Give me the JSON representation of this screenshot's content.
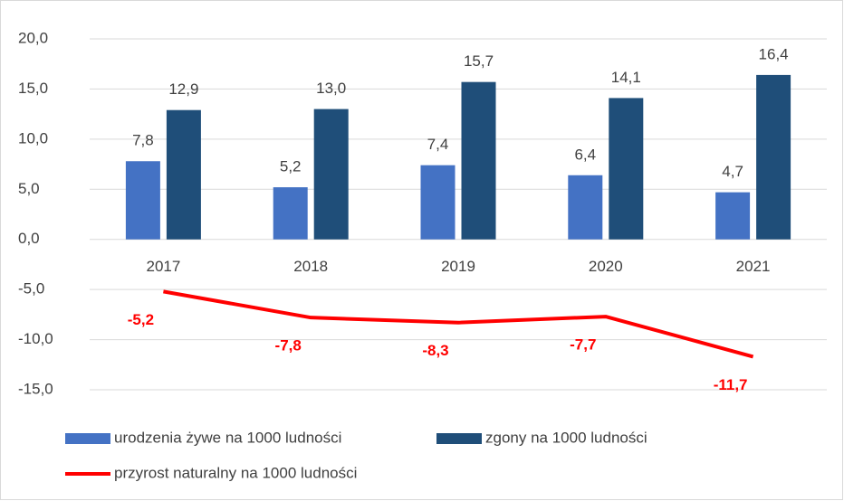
{
  "chart_data": {
    "type": "bar",
    "categories": [
      "2017",
      "2018",
      "2019",
      "2020",
      "2021"
    ],
    "series": [
      {
        "name": "urodzenia żywe na 1000 ludności",
        "color": "#4472c4",
        "values": [
          7.8,
          5.2,
          7.4,
          6.4,
          4.7
        ],
        "value_labels": [
          "7,8",
          "5,2",
          "7,4",
          "6,4",
          "4,7"
        ]
      },
      {
        "name": "zgony na 1000 ludności",
        "color": "#1f4e79",
        "values": [
          12.9,
          13.0,
          15.7,
          14.1,
          16.4
        ],
        "value_labels": [
          "12,9",
          "13,0",
          "15,7",
          "14,1",
          "16,4"
        ]
      },
      {
        "name": "przyrost naturalny na 1000 ludności",
        "color": "#ff0000",
        "type": "line",
        "values": [
          -5.2,
          -7.8,
          -8.3,
          -7.7,
          -11.7
        ],
        "value_labels": [
          "-5,2",
          "-7,8",
          "-8,3",
          "-7,7",
          "-11,7"
        ]
      }
    ],
    "ylim": [
      -15,
      20
    ],
    "yticks": [
      {
        "value": -15,
        "label": "-15,0"
      },
      {
        "value": -10,
        "label": "-10,0"
      },
      {
        "value": -5,
        "label": "-5,0"
      },
      {
        "value": 0,
        "label": "0,0"
      },
      {
        "value": 5,
        "label": "5,0"
      },
      {
        "value": 10,
        "label": "10,0"
      },
      {
        "value": 15,
        "label": "15,0"
      },
      {
        "value": 20,
        "label": "20,0"
      }
    ],
    "grid": true
  }
}
